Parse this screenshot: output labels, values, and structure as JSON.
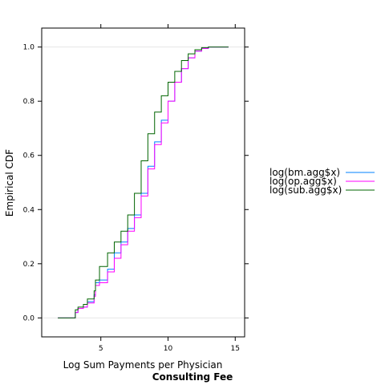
{
  "chart_data": {
    "type": "line",
    "xlabel": "Log Sum Payments per Physician",
    "sub": "Consulting Fee",
    "ylabel": "Empirical CDF",
    "xlim": [
      0.6,
      15.7
    ],
    "ylim": [
      -0.07,
      1.07
    ],
    "xticks": [
      5,
      10,
      15
    ],
    "yticks": [
      0.0,
      0.2,
      0.4,
      0.6,
      0.8,
      1.0
    ],
    "ytick_labels": [
      "0.0",
      "0.2",
      "0.4",
      "0.6",
      "0.8",
      "1.0"
    ],
    "reference_lines": [
      0,
      1
    ],
    "legend_position": "right",
    "series": [
      {
        "name": "log(bm.agg$x)",
        "color": "#0080ff",
        "points": [
          [
            1.8,
            0.0
          ],
          [
            3.0,
            0.0
          ],
          [
            3.1,
            0.02
          ],
          [
            3.3,
            0.035
          ],
          [
            3.7,
            0.04
          ],
          [
            4.0,
            0.06
          ],
          [
            4.5,
            0.085
          ],
          [
            4.6,
            0.13
          ],
          [
            4.9,
            0.14
          ],
          [
            5.5,
            0.18
          ],
          [
            6.0,
            0.24
          ],
          [
            6.5,
            0.28
          ],
          [
            7.0,
            0.33
          ],
          [
            7.5,
            0.38
          ],
          [
            8.0,
            0.46
          ],
          [
            8.5,
            0.56
          ],
          [
            9.0,
            0.65
          ],
          [
            9.5,
            0.73
          ],
          [
            10.0,
            0.8
          ],
          [
            10.5,
            0.87
          ],
          [
            11.0,
            0.92
          ],
          [
            11.5,
            0.96
          ],
          [
            12.0,
            0.985
          ],
          [
            12.5,
            0.995
          ],
          [
            13.0,
            1.0
          ],
          [
            14.5,
            1.0
          ]
        ]
      },
      {
        "name": "log(op.agg$x)",
        "color": "#ff00ff",
        "points": [
          [
            1.8,
            0.0
          ],
          [
            3.0,
            0.0
          ],
          [
            3.1,
            0.02
          ],
          [
            3.3,
            0.035
          ],
          [
            3.7,
            0.04
          ],
          [
            4.0,
            0.055
          ],
          [
            4.5,
            0.08
          ],
          [
            4.6,
            0.12
          ],
          [
            4.9,
            0.13
          ],
          [
            5.5,
            0.17
          ],
          [
            6.0,
            0.22
          ],
          [
            6.5,
            0.27
          ],
          [
            7.0,
            0.32
          ],
          [
            7.5,
            0.37
          ],
          [
            8.0,
            0.45
          ],
          [
            8.5,
            0.55
          ],
          [
            9.0,
            0.64
          ],
          [
            9.5,
            0.72
          ],
          [
            10.0,
            0.8
          ],
          [
            10.5,
            0.87
          ],
          [
            11.0,
            0.92
          ],
          [
            11.5,
            0.96
          ],
          [
            12.0,
            0.985
          ],
          [
            12.5,
            0.995
          ],
          [
            13.0,
            1.0
          ],
          [
            14.5,
            1.0
          ]
        ]
      },
      {
        "name": "log(sub.agg$x)",
        "color": "#006400",
        "points": [
          [
            1.8,
            0.0
          ],
          [
            3.0,
            0.0
          ],
          [
            3.1,
            0.03
          ],
          [
            3.3,
            0.04
          ],
          [
            3.7,
            0.05
          ],
          [
            4.0,
            0.07
          ],
          [
            4.5,
            0.1
          ],
          [
            4.6,
            0.14
          ],
          [
            4.9,
            0.19
          ],
          [
            5.5,
            0.24
          ],
          [
            6.0,
            0.28
          ],
          [
            6.5,
            0.32
          ],
          [
            7.0,
            0.38
          ],
          [
            7.5,
            0.46
          ],
          [
            8.0,
            0.58
          ],
          [
            8.5,
            0.68
          ],
          [
            9.0,
            0.76
          ],
          [
            9.5,
            0.82
          ],
          [
            10.0,
            0.87
          ],
          [
            10.5,
            0.91
          ],
          [
            11.0,
            0.95
          ],
          [
            11.5,
            0.975
          ],
          [
            12.0,
            0.99
          ],
          [
            12.5,
            0.998
          ],
          [
            13.0,
            1.0
          ],
          [
            14.5,
            1.0
          ]
        ]
      }
    ]
  }
}
